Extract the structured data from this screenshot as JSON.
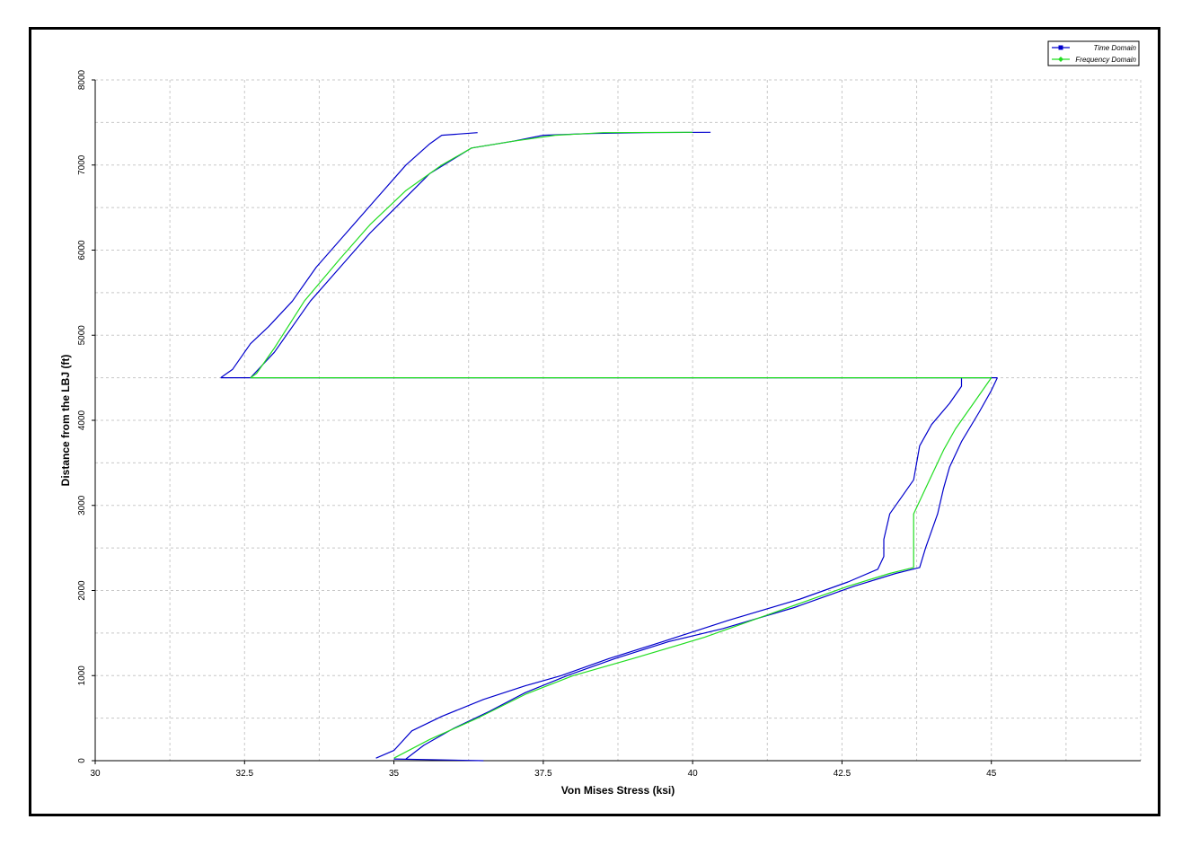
{
  "chart_data": {
    "type": "line",
    "title": "",
    "xlabel": "Von Mises Stress (ksi)",
    "ylabel": "Distance from the LBJ (ft)",
    "xlim": [
      30,
      47.5
    ],
    "ylim": [
      0,
      8000
    ],
    "x_ticks": [
      30,
      32.5,
      35,
      37.5,
      40,
      42.5,
      45
    ],
    "x_tick_labels": [
      "30",
      "32.5",
      "35",
      "37.5",
      "40",
      "42.5",
      "45"
    ],
    "y_ticks": [
      0,
      1000,
      2000,
      3000,
      4000,
      5000,
      6000,
      7000,
      8000
    ],
    "y_tick_labels": [
      "0",
      "1000",
      "2000",
      "3000",
      "4000",
      "5000",
      "6000",
      "7000",
      "8000"
    ],
    "grid": true,
    "legend_position": "top-right",
    "series": [
      {
        "name": "Time Domain",
        "color": "#0000cc",
        "marker": "square",
        "segments": [
          [
            [
              34.7,
              30
            ],
            [
              35.0,
              120
            ],
            [
              35.3,
              350
            ],
            [
              35.8,
              520
            ],
            [
              36.5,
              720
            ],
            [
              37.2,
              880
            ],
            [
              37.8,
              1000
            ],
            [
              38.6,
              1200
            ],
            [
              39.5,
              1400
            ],
            [
              40.6,
              1650
            ],
            [
              41.8,
              1900
            ],
            [
              42.6,
              2100
            ],
            [
              43.1,
              2250
            ],
            [
              43.2,
              2400
            ],
            [
              43.2,
              2600
            ],
            [
              43.3,
              2900
            ],
            [
              43.5,
              3100
            ],
            [
              43.7,
              3300
            ],
            [
              43.8,
              3700
            ],
            [
              44.0,
              3950
            ],
            [
              44.3,
              4200
            ],
            [
              44.5,
              4400
            ],
            [
              44.5,
              4500
            ]
          ],
          [
            [
              35.2,
              20
            ],
            [
              35.5,
              180
            ],
            [
              36.0,
              380
            ],
            [
              36.6,
              580
            ],
            [
              37.2,
              800
            ],
            [
              37.9,
              1000
            ],
            [
              38.7,
              1200
            ],
            [
              39.6,
              1400
            ],
            [
              40.5,
              1550
            ],
            [
              41.7,
              1800
            ],
            [
              42.7,
              2050
            ],
            [
              43.4,
              2200
            ],
            [
              43.8,
              2270
            ],
            [
              43.9,
              2500
            ],
            [
              44.1,
              2900
            ],
            [
              44.2,
              3200
            ],
            [
              44.3,
              3450
            ],
            [
              44.5,
              3750
            ],
            [
              44.8,
              4100
            ],
            [
              45.0,
              4350
            ],
            [
              45.1,
              4500
            ]
          ],
          [
            [
              32.1,
              4500
            ],
            [
              32.3,
              4600
            ],
            [
              32.6,
              4900
            ],
            [
              32.9,
              5100
            ],
            [
              33.3,
              5400
            ],
            [
              33.7,
              5800
            ],
            [
              34.2,
              6200
            ],
            [
              34.7,
              6600
            ],
            [
              35.2,
              7000
            ],
            [
              35.6,
              7250
            ],
            [
              35.8,
              7350
            ],
            [
              36.4,
              7380
            ]
          ],
          [
            [
              32.6,
              4500
            ],
            [
              33.0,
              4800
            ],
            [
              33.6,
              5400
            ],
            [
              34.1,
              5800
            ],
            [
              34.6,
              6200
            ],
            [
              35.1,
              6550
            ],
            [
              35.6,
              6900
            ],
            [
              36.3,
              7200
            ],
            [
              37.0,
              7280
            ],
            [
              37.5,
              7350
            ],
            [
              38.3,
              7370
            ],
            [
              39.2,
              7380
            ],
            [
              40.3,
              7385
            ]
          ],
          [
            [
              32.1,
              4500
            ],
            [
              45.1,
              4500
            ]
          ],
          [
            [
              35.0,
              20
            ],
            [
              36.5,
              0
            ]
          ]
        ]
      },
      {
        "name": "Frequency Domain",
        "color": "#22dd22",
        "marker": "diamond",
        "segments": [
          [
            [
              35.0,
              30
            ],
            [
              35.6,
              250
            ],
            [
              36.4,
              500
            ],
            [
              37.2,
              780
            ],
            [
              38.0,
              1000
            ],
            [
              39.0,
              1200
            ],
            [
              40.2,
              1450
            ],
            [
              41.4,
              1750
            ],
            [
              42.6,
              2050
            ],
            [
              43.3,
              2200
            ],
            [
              43.7,
              2270
            ],
            [
              43.7,
              2600
            ],
            [
              43.7,
              2900
            ],
            [
              43.9,
              3200
            ],
            [
              44.2,
              3650
            ],
            [
              44.4,
              3900
            ],
            [
              44.7,
              4200
            ],
            [
              45.0,
              4500
            ]
          ],
          [
            [
              32.6,
              4500
            ],
            [
              32.7,
              4550
            ],
            [
              33.0,
              4850
            ],
            [
              33.5,
              5400
            ],
            [
              34.1,
              5900
            ],
            [
              34.6,
              6300
            ],
            [
              35.2,
              6700
            ],
            [
              35.8,
              7000
            ],
            [
              36.3,
              7200
            ],
            [
              37.0,
              7280
            ],
            [
              37.7,
              7350
            ],
            [
              38.5,
              7380
            ],
            [
              40.0,
              7385
            ]
          ],
          [
            [
              32.6,
              4500
            ],
            [
              45.0,
              4500
            ]
          ]
        ]
      }
    ]
  }
}
